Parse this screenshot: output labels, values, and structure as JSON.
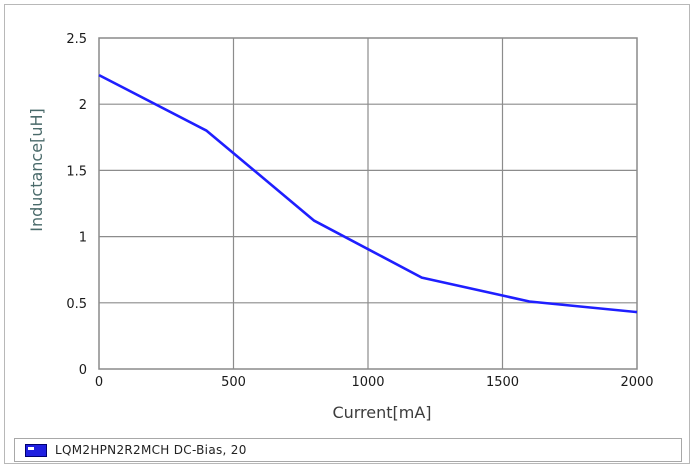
{
  "chart_data": {
    "type": "line",
    "title": "",
    "xlabel": "Current[mA]",
    "ylabel": "Inductance[uH]",
    "xlim": [
      0,
      2000
    ],
    "ylim": [
      0,
      2.5
    ],
    "x_ticks": [
      "0",
      "500",
      "1000",
      "1500",
      "2000"
    ],
    "y_ticks": [
      "0",
      "0.5",
      "1",
      "1.5",
      "2",
      "2.5"
    ],
    "grid": true,
    "series": [
      {
        "name": "LQM2HPN2R2MCH  DC-Bias, 20",
        "color": "#1f1fff",
        "x": [
          0,
          400,
          800,
          1200,
          1600,
          2000
        ],
        "y": [
          2.22,
          1.8,
          1.12,
          0.69,
          0.51,
          0.43
        ]
      }
    ],
    "legend": {
      "placement": "bottom"
    }
  }
}
